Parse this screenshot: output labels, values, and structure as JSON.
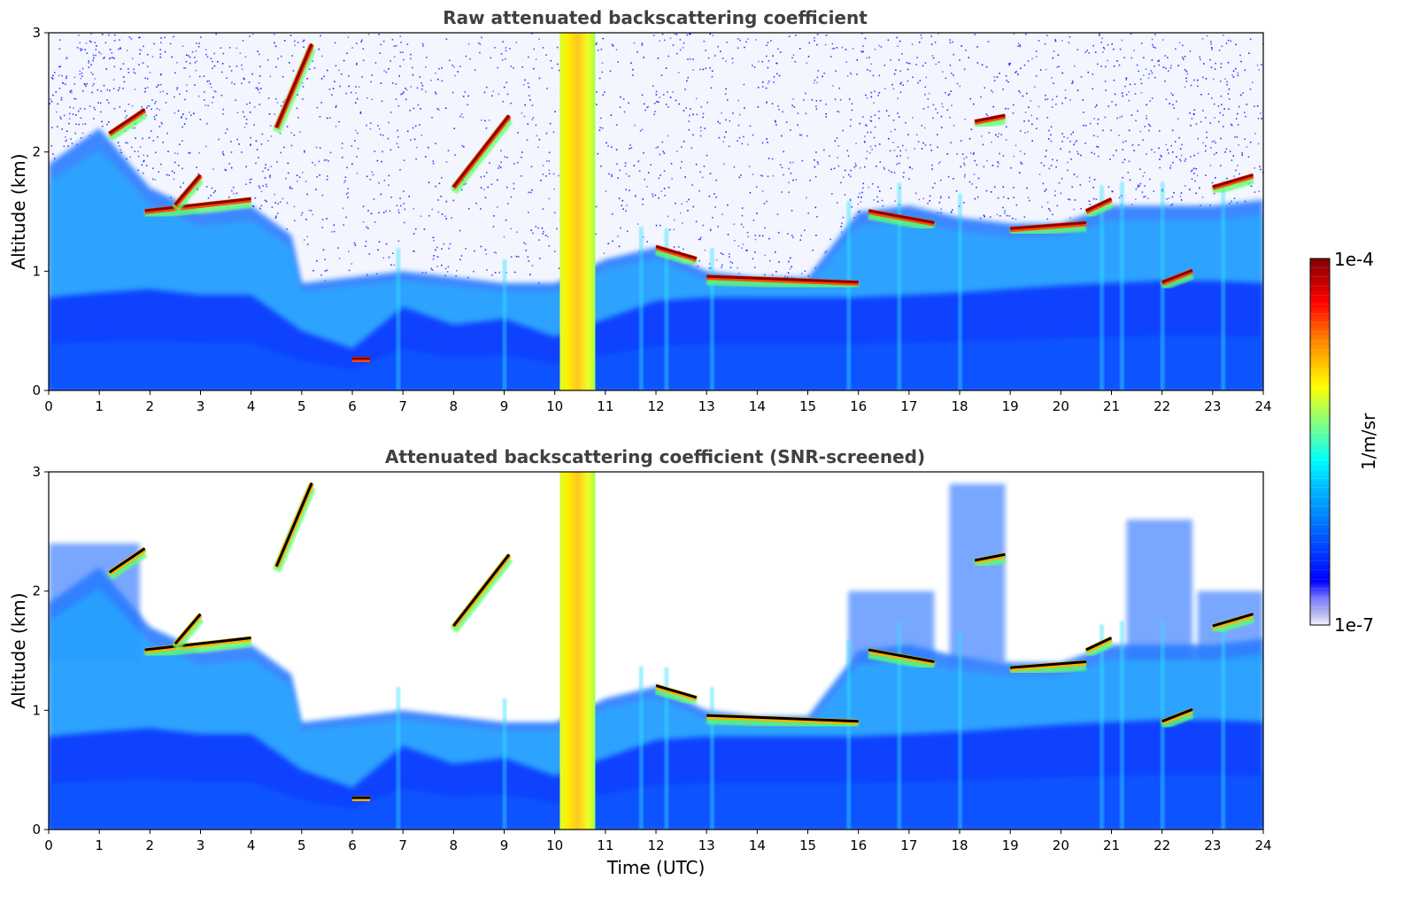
{
  "chart_data": [
    {
      "type": "heatmap",
      "title": "Raw attenuated backscattering coefficient",
      "xlabel": "",
      "ylabel": "Altitude (km)",
      "xlim": [
        0,
        24
      ],
      "ylim": [
        0,
        3
      ],
      "x_ticks": [
        "0",
        "1",
        "2",
        "3",
        "4",
        "5",
        "6",
        "7",
        "8",
        "9",
        "10",
        "11",
        "12",
        "13",
        "14",
        "15",
        "16",
        "17",
        "18",
        "19",
        "20",
        "21",
        "22",
        "23",
        "24"
      ],
      "y_ticks": [
        "0",
        "1",
        "2",
        "3"
      ],
      "grid": false,
      "colorscale": "jet",
      "layers": {
        "boundary_layer_top_km": [
          [
            0,
            0.78
          ],
          [
            1,
            0.82
          ],
          [
            2,
            0.85
          ],
          [
            3,
            0.8
          ],
          [
            4,
            0.8
          ],
          [
            5,
            0.5
          ],
          [
            6,
            0.35
          ],
          [
            7,
            0.7
          ],
          [
            8,
            0.55
          ],
          [
            9,
            0.6
          ],
          [
            10,
            0.45
          ],
          [
            11,
            0.6
          ],
          [
            12,
            0.75
          ],
          [
            13,
            0.78
          ],
          [
            14,
            0.78
          ],
          [
            15,
            0.78
          ],
          [
            16,
            0.78
          ],
          [
            17,
            0.8
          ],
          [
            18,
            0.82
          ],
          [
            19,
            0.85
          ],
          [
            20,
            0.88
          ],
          [
            21,
            0.9
          ],
          [
            22,
            0.92
          ],
          [
            23,
            0.92
          ],
          [
            24,
            0.9
          ]
        ],
        "aerosol_top_km": [
          [
            0,
            1.9
          ],
          [
            1,
            2.2
          ],
          [
            2,
            1.7
          ],
          [
            3,
            1.5
          ],
          [
            4,
            1.55
          ],
          [
            4.8,
            1.3
          ],
          [
            5,
            0.9
          ],
          [
            7,
            1.0
          ],
          [
            9,
            0.9
          ],
          [
            10,
            0.9
          ],
          [
            11,
            1.1
          ],
          [
            12,
            1.2
          ],
          [
            13,
            1.0
          ],
          [
            14,
            0.95
          ],
          [
            15,
            0.95
          ],
          [
            16,
            1.5
          ],
          [
            17,
            1.55
          ],
          [
            18,
            1.45
          ],
          [
            19,
            1.4
          ],
          [
            20,
            1.4
          ],
          [
            21,
            1.55
          ],
          [
            22,
            1.55
          ],
          [
            23,
            1.55
          ],
          [
            24,
            1.6
          ]
        ],
        "precipitation_band_utc": [
          10.1,
          10.8
        ],
        "cloud_segments_km": [
          {
            "x": [
              1.2,
              1.9
            ],
            "y": [
              2.15,
              2.35
            ]
          },
          {
            "x": [
              1.9,
              4.0
            ],
            "y": [
              1.5,
              1.6
            ]
          },
          {
            "x": [
              2.5,
              3.0
            ],
            "y": [
              1.55,
              1.8
            ]
          },
          {
            "x": [
              4.5,
              5.2
            ],
            "y": [
              2.2,
              2.9
            ]
          },
          {
            "x": [
              6.0,
              6.35
            ],
            "y": [
              0.26,
              0.26
            ]
          },
          {
            "x": [
              8.0,
              9.1
            ],
            "y": [
              1.7,
              2.3
            ]
          },
          {
            "x": [
              12.0,
              12.8
            ],
            "y": [
              1.2,
              1.1
            ]
          },
          {
            "x": [
              13.0,
              16.0
            ],
            "y": [
              0.95,
              0.9
            ]
          },
          {
            "x": [
              16.2,
              17.5
            ],
            "y": [
              1.5,
              1.4
            ]
          },
          {
            "x": [
              18.3,
              18.9
            ],
            "y": [
              2.25,
              2.3
            ]
          },
          {
            "x": [
              19.0,
              20.5
            ],
            "y": [
              1.35,
              1.4
            ]
          },
          {
            "x": [
              20.5,
              21.0
            ],
            "y": [
              1.5,
              1.6
            ]
          },
          {
            "x": [
              22.0,
              22.6
            ],
            "y": [
              0.9,
              1.0
            ]
          },
          {
            "x": [
              23.0,
              23.8
            ],
            "y": [
              1.7,
              1.8
            ]
          }
        ]
      }
    },
    {
      "type": "heatmap",
      "title": "Attenuated backscattering coefficient (SNR-screened)",
      "xlabel": "Time (UTC)",
      "ylabel": "Altitude (km)",
      "xlim": [
        0,
        24
      ],
      "ylim": [
        0,
        3
      ],
      "x_ticks": [
        "0",
        "1",
        "2",
        "3",
        "4",
        "5",
        "6",
        "7",
        "8",
        "9",
        "10",
        "11",
        "12",
        "13",
        "14",
        "15",
        "16",
        "17",
        "18",
        "19",
        "20",
        "21",
        "22",
        "23",
        "24"
      ],
      "y_ticks": [
        "0",
        "1",
        "2",
        "3"
      ],
      "grid": false,
      "colorscale": "jet",
      "screened": true
    }
  ],
  "colorbar": {
    "max_label": "1e-4",
    "min_label": "1e-7",
    "unit_label": "1/m/sr"
  },
  "colors": {
    "jet_stops": [
      "#f2f2ff",
      "#b8b8f0",
      "#8080ff",
      "#0000ff",
      "#0040ff",
      "#0080ff",
      "#00c0ff",
      "#00ffff",
      "#40ffc0",
      "#80ff80",
      "#c0ff40",
      "#ffff00",
      "#ffc000",
      "#ff8000",
      "#ff4000",
      "#ff0000",
      "#c00000",
      "#800000"
    ]
  }
}
